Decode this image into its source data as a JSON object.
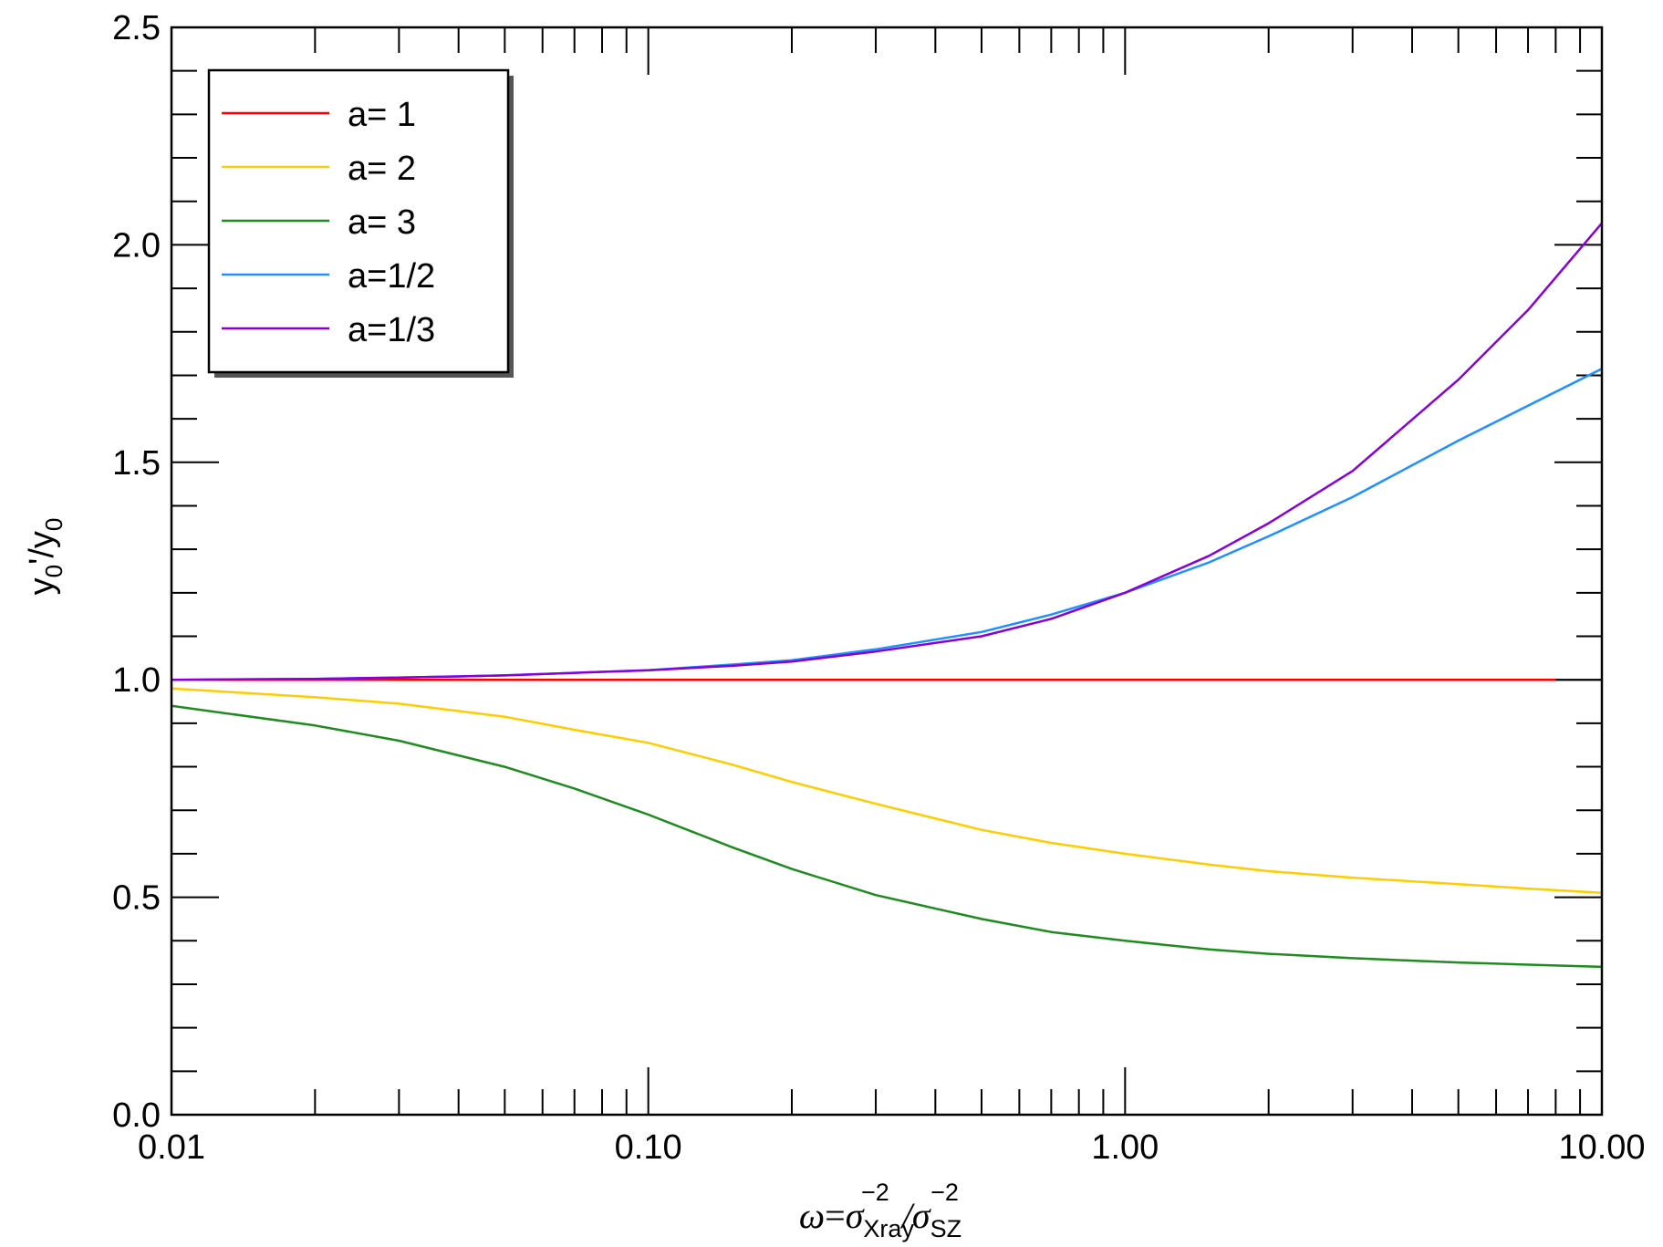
{
  "chart_data": {
    "type": "line",
    "xscale": "log",
    "xlim": [
      0.01,
      10.0
    ],
    "ylim": [
      0.0,
      2.5
    ],
    "xticks": [
      {
        "value": 0.01,
        "label": "0.01"
      },
      {
        "value": 0.1,
        "label": "0.10"
      },
      {
        "value": 1.0,
        "label": "1.00"
      },
      {
        "value": 10.0,
        "label": "10.00"
      }
    ],
    "yticks": [
      {
        "value": 0.0,
        "label": "0.0"
      },
      {
        "value": 0.5,
        "label": "0.5"
      },
      {
        "value": 1.0,
        "label": "1.0"
      },
      {
        "value": 1.5,
        "label": "1.5"
      },
      {
        "value": 2.0,
        "label": "2.0"
      },
      {
        "value": 2.5,
        "label": "2.5"
      }
    ],
    "y_minor_step": 0.1,
    "reference_line_y": 1.0,
    "xlabel": {
      "omega": "ω",
      "eq": "=",
      "sigma1": "σ",
      "sub1": "Xray",
      "sup1": "−2",
      "slash": "/",
      "sigma2": "σ",
      "sub2": "SZ",
      "sup2": "−2"
    },
    "ylabel": {
      "y1": "y",
      "sub1": "0",
      "prime": "'",
      "slash": "/y",
      "sub2": "0"
    },
    "legend_position": "top-left",
    "series": [
      {
        "name": "a= 1",
        "color": "#ff0000",
        "x": [
          0.01,
          8.0
        ],
        "y": [
          1.0,
          1.0
        ]
      },
      {
        "name": "a= 2",
        "color": "#ffcc00",
        "x": [
          0.01,
          0.02,
          0.03,
          0.05,
          0.07,
          0.1,
          0.15,
          0.2,
          0.3,
          0.5,
          0.7,
          1.0,
          1.5,
          2.0,
          3.0,
          5.0,
          7.0,
          10.0
        ],
        "y": [
          0.98,
          0.96,
          0.945,
          0.915,
          0.885,
          0.855,
          0.805,
          0.765,
          0.715,
          0.655,
          0.625,
          0.6,
          0.575,
          0.56,
          0.545,
          0.53,
          0.52,
          0.51
        ]
      },
      {
        "name": "a= 3",
        "color": "#1e8c1e",
        "x": [
          0.01,
          0.02,
          0.03,
          0.05,
          0.07,
          0.1,
          0.15,
          0.2,
          0.3,
          0.5,
          0.7,
          1.0,
          1.5,
          2.0,
          3.0,
          5.0,
          7.0,
          10.0
        ],
        "y": [
          0.94,
          0.895,
          0.86,
          0.8,
          0.75,
          0.69,
          0.615,
          0.565,
          0.505,
          0.45,
          0.42,
          0.4,
          0.38,
          0.37,
          0.36,
          0.35,
          0.345,
          0.34
        ]
      },
      {
        "name": "a=1/2",
        "color": "#1e90ff",
        "x": [
          0.01,
          0.02,
          0.03,
          0.05,
          0.07,
          0.1,
          0.15,
          0.2,
          0.3,
          0.5,
          0.7,
          1.0,
          1.5,
          2.0,
          3.0,
          5.0,
          7.0,
          10.0
        ],
        "y": [
          1.0,
          1.002,
          1.005,
          1.01,
          1.016,
          1.022,
          1.035,
          1.045,
          1.07,
          1.11,
          1.15,
          1.2,
          1.27,
          1.33,
          1.42,
          1.55,
          1.63,
          1.715
        ]
      },
      {
        "name": "a=1/3",
        "color": "#8a00d4",
        "x": [
          0.01,
          0.02,
          0.03,
          0.05,
          0.07,
          0.1,
          0.15,
          0.2,
          0.3,
          0.5,
          0.7,
          1.0,
          1.5,
          2.0,
          3.0,
          5.0,
          7.0,
          10.0
        ],
        "y": [
          1.0,
          1.002,
          1.005,
          1.01,
          1.016,
          1.022,
          1.032,
          1.042,
          1.065,
          1.1,
          1.14,
          1.2,
          1.285,
          1.36,
          1.48,
          1.69,
          1.85,
          2.05
        ]
      }
    ]
  }
}
